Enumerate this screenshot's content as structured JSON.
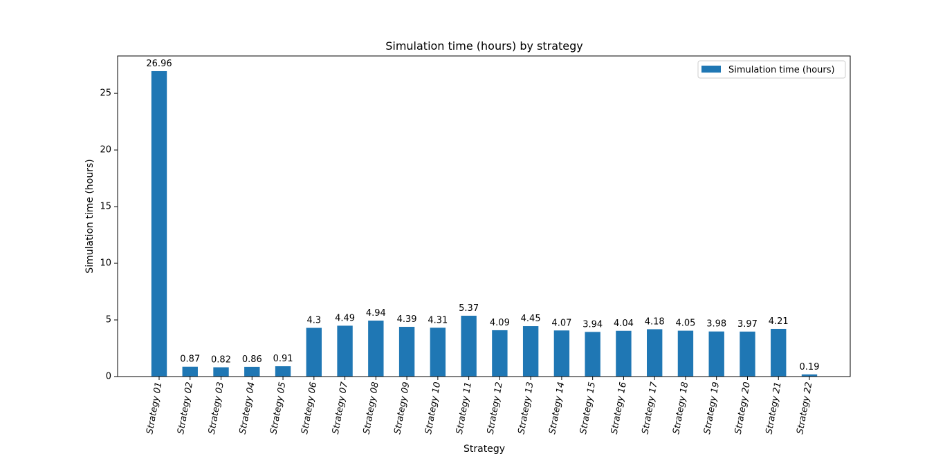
{
  "chart_data": {
    "type": "bar",
    "title": "Simulation time (hours) by strategy",
    "xlabel": "Strategy",
    "ylabel": "Simulation time (hours)",
    "categories": [
      "Strategy 01",
      "Strategy 02",
      "Strategy 03",
      "Strategy 04",
      "Strategy 05",
      "Strategy 06",
      "Strategy 07",
      "Strategy 08",
      "Strategy 09",
      "Strategy 10",
      "Strategy 11",
      "Strategy 12",
      "Strategy 13",
      "Strategy 14",
      "Strategy 15",
      "Strategy 16",
      "Strategy 17",
      "Strategy 18",
      "Strategy 19",
      "Strategy 20",
      "Strategy 21",
      "Strategy 22"
    ],
    "series": [
      {
        "name": "Simulation time (hours)",
        "values": [
          26.96,
          0.87,
          0.82,
          0.86,
          0.91,
          4.3,
          4.49,
          4.94,
          4.39,
          4.31,
          5.37,
          4.09,
          4.45,
          4.07,
          3.94,
          4.04,
          4.18,
          4.05,
          3.98,
          3.97,
          4.21,
          0.19
        ],
        "value_labels": [
          "26.96",
          "0.87",
          "0.82",
          "0.86",
          "0.91",
          "4.3",
          "4.49",
          "4.94",
          "4.39",
          "4.31",
          "5.37",
          "4.09",
          "4.45",
          "4.07",
          "3.94",
          "4.04",
          "4.18",
          "4.05",
          "3.98",
          "3.97",
          "4.21",
          "0.19"
        ],
        "color": "#1f77b4"
      }
    ],
    "ylim": [
      0,
      28.3
    ],
    "yticks": [
      0,
      5,
      10,
      15,
      20,
      25
    ],
    "ytick_labels": [
      "0",
      "5",
      "10",
      "15",
      "20",
      "25"
    ],
    "xtick_rotation_deg": -80,
    "grid": false,
    "legend_position": "top-right"
  }
}
